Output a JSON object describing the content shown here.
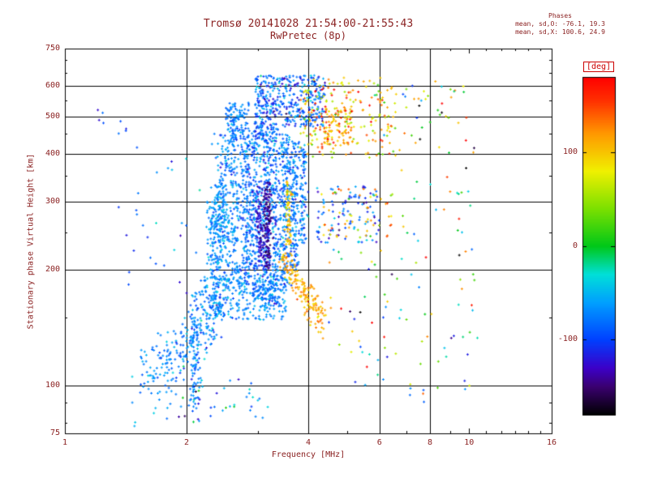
{
  "header": {
    "title_line1": "Tromsø 20141028 21:54:00-21:55:43",
    "title_line2": "RwPretec (8p)",
    "stats_title": "Phases",
    "stats_line1": "mean, sd,O: -76.1, 19.3",
    "stats_line2": "mean, sd,X: 100.6, 24.9"
  },
  "colors": {
    "text": "#8b2222",
    "frame": "#000000",
    "deg_label": "#cc0000",
    "background": "#ffffff"
  },
  "chart_data": {
    "type": "scatter",
    "title": "Tromsø 20141028 21:54:00-21:55:43",
    "subtitle": "RwPretec (8p)",
    "xlabel": "Frequency [MHz]",
    "ylabel": "Stationary phase Virtual Height [km]",
    "x_scale": "log",
    "y_scale": "log",
    "xlim": [
      1,
      16
    ],
    "ylim": [
      75,
      750
    ],
    "x_major_ticks": [
      1,
      2,
      4,
      6,
      8,
      10,
      16
    ],
    "x_gridlines": [
      2,
      4,
      6,
      8
    ],
    "x_minor_ticks": [
      3,
      5,
      7,
      9,
      11,
      12,
      13,
      14,
      15
    ],
    "y_major_ticks": [
      75,
      100,
      200,
      300,
      400,
      500,
      600,
      750
    ],
    "y_gridlines": [
      100,
      200,
      300,
      400,
      500,
      600
    ],
    "y_minor_ticks": [
      80,
      90,
      150,
      250,
      350,
      450,
      550,
      650,
      700
    ],
    "grid": true,
    "legend": false,
    "marker": "plus",
    "marker_size": 3,
    "seed": 20141028,
    "colorbar": {
      "label": "[deg]",
      "range": [
        -180,
        180
      ],
      "ticks": [
        100,
        0,
        -100
      ],
      "stops": [
        [
          -180,
          "#000000"
        ],
        [
          -150,
          "#3a006f"
        ],
        [
          -130,
          "#3c00c8"
        ],
        [
          -100,
          "#0040ff"
        ],
        [
          -60,
          "#00a0ff"
        ],
        [
          -30,
          "#00e0d8"
        ],
        [
          0,
          "#00c818"
        ],
        [
          40,
          "#7ce000"
        ],
        [
          80,
          "#f0f000"
        ],
        [
          120,
          "#ff9800"
        ],
        [
          155,
          "#ff3000"
        ],
        [
          180,
          "#ff0000"
        ]
      ]
    },
    "clusters": [
      {
        "name": "strip-2.33",
        "kind": "strip",
        "fc": 2.33,
        "fsig": 0.045,
        "h": [
          155,
          300
        ],
        "n": 110,
        "phase": [
          -72,
          18
        ]
      },
      {
        "name": "strip-2.45",
        "kind": "strip",
        "fc": 2.45,
        "fsig": 0.055,
        "h": [
          150,
          480
        ],
        "n": 190,
        "phase": [
          -75,
          18
        ]
      },
      {
        "name": "strip-2.62",
        "kind": "strip",
        "fc": 2.62,
        "fsig": 0.05,
        "h": [
          165,
          510
        ],
        "n": 170,
        "phase": [
          -72,
          16
        ]
      },
      {
        "name": "strip-2.80",
        "kind": "strip",
        "fc": 2.8,
        "fsig": 0.055,
        "h": [
          175,
          460
        ],
        "n": 190,
        "phase": [
          -78,
          18
        ]
      },
      {
        "name": "strip-2.95",
        "kind": "strip",
        "fc": 2.95,
        "fsig": 0.055,
        "h": [
          170,
          470
        ],
        "n": 190,
        "phase": [
          -80,
          20
        ]
      },
      {
        "name": "strip-3.12",
        "kind": "strip",
        "fc": 3.12,
        "fsig": 0.06,
        "h": [
          160,
          480
        ],
        "n": 240,
        "phase": [
          -82,
          22
        ]
      },
      {
        "name": "strip-3.30",
        "kind": "strip",
        "fc": 3.3,
        "fsig": 0.06,
        "h": [
          160,
          470
        ],
        "n": 220,
        "phase": [
          -80,
          22
        ]
      },
      {
        "name": "strip-3.50",
        "kind": "strip",
        "fc": 3.5,
        "fsig": 0.06,
        "h": [
          180,
          450
        ],
        "n": 200,
        "phase": [
          -78,
          20
        ]
      },
      {
        "name": "strip-3.70",
        "kind": "strip",
        "fc": 3.7,
        "fsig": 0.05,
        "h": [
          200,
          430
        ],
        "n": 150,
        "phase": [
          -76,
          20
        ]
      },
      {
        "name": "strip-3.88",
        "kind": "strip",
        "fc": 3.88,
        "fsig": 0.045,
        "h": [
          230,
          430
        ],
        "n": 90,
        "phase": [
          -74,
          20
        ]
      },
      {
        "name": "column-2.1",
        "kind": "strip",
        "fc": 2.1,
        "fsig": 0.03,
        "h": [
          85,
          175
        ],
        "n": 90,
        "phase": [
          -72,
          15
        ]
      },
      {
        "name": "dark-column",
        "kind": "strip",
        "fc": 3.17,
        "fsig": 0.04,
        "h": [
          200,
          345
        ],
        "n": 150,
        "phase": [
          -142,
          12
        ]
      },
      {
        "name": "dark-column-2",
        "kind": "strip",
        "fc": 3.03,
        "fsig": 0.025,
        "h": [
          210,
          330
        ],
        "n": 60,
        "phase": [
          -128,
          10
        ]
      },
      {
        "name": "cyan-patch-left",
        "kind": "strip",
        "fc": 2.44,
        "fsig": 0.08,
        "h": [
          235,
          330
        ],
        "n": 90,
        "phase": [
          -58,
          10
        ]
      },
      {
        "name": "top-blue-cluster",
        "kind": "box",
        "f": [
          2.95,
          4.4
        ],
        "h": [
          470,
          640
        ],
        "n": 400,
        "phase": [
          -85,
          26
        ]
      },
      {
        "name": "top-left-patch",
        "kind": "box",
        "f": [
          2.5,
          2.85
        ],
        "h": [
          450,
          545
        ],
        "n": 80,
        "phase": [
          -72,
          14
        ]
      },
      {
        "name": "top-warm-scatter",
        "kind": "box",
        "f": [
          3.8,
          6.6
        ],
        "h": [
          390,
          630
        ],
        "n": 220,
        "phase": [
          95,
          45
        ]
      },
      {
        "name": "warm-mid-cluster",
        "kind": "box",
        "f": [
          4.3,
          5.2
        ],
        "h": [
          420,
          525
        ],
        "n": 80,
        "phase": [
          118,
          28
        ]
      },
      {
        "name": "orange-arc",
        "kind": "arc",
        "pts": [
          [
            3.45,
            215
          ],
          [
            3.9,
            162
          ],
          [
            4.35,
            152
          ]
        ],
        "hjit": 8,
        "fjit": 0.05,
        "n": 170,
        "phase": [
          112,
          15
        ]
      },
      {
        "name": "yellow-column",
        "kind": "strip",
        "fc": 3.57,
        "fsig": 0.03,
        "h": [
          230,
          340
        ],
        "n": 60,
        "phase": [
          98,
          22
        ]
      },
      {
        "name": "mid-right-blue",
        "kind": "box",
        "f": [
          4.2,
          6.0
        ],
        "h": [
          235,
          330
        ],
        "n": 100,
        "phase": [
          -92,
          28
        ]
      },
      {
        "name": "mid-right-warm",
        "kind": "box",
        "f": [
          4.3,
          6.5
        ],
        "h": [
          240,
          325
        ],
        "n": 55,
        "phase": [
          100,
          40
        ]
      },
      {
        "name": "bottom-band",
        "kind": "box",
        "f": [
          2.15,
          3.55
        ],
        "h": [
          148,
          192
        ],
        "n": 260,
        "phase": [
          -70,
          15
        ]
      },
      {
        "name": "lower-tail",
        "kind": "arc",
        "pts": [
          [
            1.55,
            100
          ],
          [
            1.95,
            122
          ],
          [
            2.4,
            152
          ]
        ],
        "hjit": 12,
        "fjit": 0.07,
        "n": 240,
        "phase": [
          -70,
          18
        ]
      },
      {
        "name": "lower-sparse",
        "kind": "box",
        "f": [
          1.9,
          3.2
        ],
        "h": [
          80,
          105
        ],
        "n": 40,
        "phase": [
          -70,
          40
        ]
      },
      {
        "name": "high-f-sparse",
        "kind": "box",
        "f": [
          6.5,
          10.5
        ],
        "h": [
          90,
          640
        ],
        "n": 85,
        "phase": [
          0,
          110
        ]
      },
      {
        "name": "mid-f-low-sparse",
        "kind": "box",
        "f": [
          4.5,
          6.5
        ],
        "h": [
          100,
          225
        ],
        "n": 40,
        "phase": [
          10,
          100
        ]
      },
      {
        "name": "isolated-left-high",
        "kind": "box",
        "f": [
          1.2,
          1.45
        ],
        "h": [
          440,
          530
        ],
        "n": 8,
        "phase": [
          -90,
          20
        ]
      },
      {
        "name": "left-sparse",
        "kind": "box",
        "f": [
          1.35,
          2.2
        ],
        "h": [
          170,
          430
        ],
        "n": 28,
        "phase": [
          -80,
          25
        ]
      },
      {
        "name": "top-right-sparse",
        "kind": "box",
        "f": [
          6.5,
          9.5
        ],
        "h": [
          480,
          645
        ],
        "n": 22,
        "phase": [
          20,
          100
        ]
      }
    ]
  }
}
